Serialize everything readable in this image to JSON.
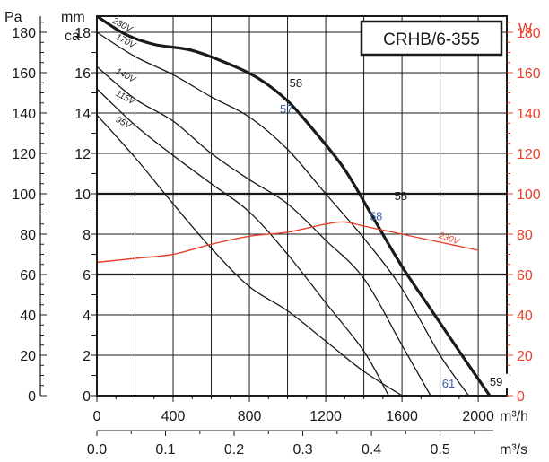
{
  "chart_data": {
    "type": "line",
    "title": "CRHB/6-355",
    "left_axis": {
      "unit_pa": "Pa",
      "unit_mm_1": "mm",
      "unit_mm_2": "ca",
      "pa_ticks": [
        "0",
        "20",
        "40",
        "60",
        "80",
        "100",
        "120",
        "140",
        "160",
        "180"
      ],
      "mm_ticks": [
        "0",
        "2",
        "4",
        "6",
        "8",
        "10",
        "12",
        "14",
        "16",
        "18"
      ],
      "ylim_pa": [
        0,
        188
      ]
    },
    "right_axis": {
      "unit": "W",
      "ticks": [
        "0",
        "20",
        "40",
        "60",
        "80",
        "100",
        "120",
        "140",
        "160",
        "180"
      ],
      "ylim": [
        0,
        188
      ],
      "color": "#e8402a"
    },
    "x_axis": {
      "unit_primary": "m³/h",
      "unit_secondary": "m³/s",
      "ticks_m3h": [
        "0",
        "400",
        "800",
        "1200",
        "1600",
        "2000"
      ],
      "ticks_m3s": [
        "0.0",
        "0.1",
        "0.2",
        "0.3",
        "0.4",
        "0.5"
      ],
      "xlim_m3h": [
        0,
        2150
      ]
    },
    "grid": true,
    "series": [
      {
        "name": "230V",
        "axis": "Pa",
        "bold": true,
        "x": [
          0,
          150,
          300,
          500,
          700,
          850,
          1000,
          1150,
          1300,
          1450,
          1600,
          1750,
          1900,
          2060
        ],
        "y": [
          188,
          179,
          174,
          171,
          164,
          157,
          146,
          130,
          112,
          88,
          64,
          43,
          22,
          0
        ]
      },
      {
        "name": "170V",
        "axis": "Pa",
        "x": [
          0,
          200,
          400,
          600,
          800,
          1000,
          1200,
          1400,
          1600,
          1800,
          1950
        ],
        "y": [
          180,
          168,
          159,
          148,
          138,
          122,
          100,
          78,
          53,
          20,
          0
        ]
      },
      {
        "name": "140V",
        "axis": "Pa",
        "x": [
          0,
          200,
          400,
          600,
          800,
          1000,
          1200,
          1400,
          1600,
          1750
        ],
        "y": [
          163,
          147,
          136,
          120,
          107,
          95,
          77,
          58,
          25,
          0
        ]
      },
      {
        "name": "115V",
        "axis": "Pa",
        "x": [
          0,
          200,
          400,
          600,
          800,
          1000,
          1200,
          1400,
          1530
        ],
        "y": [
          152,
          134,
          119,
          105,
          91,
          70,
          46,
          22,
          0
        ]
      },
      {
        "name": "95V",
        "axis": "Pa",
        "x": [
          0,
          200,
          400,
          600,
          800,
          1000,
          1200,
          1400,
          1600
        ],
        "y": [
          139,
          118,
          95,
          73,
          54,
          42,
          27,
          12,
          0
        ]
      },
      {
        "name": "230V",
        "axis": "W",
        "color": "#e8402a",
        "x": [
          0,
          200,
          400,
          600,
          800,
          1000,
          1200,
          1300,
          1400,
          1600,
          1800,
          2000
        ],
        "y": [
          66,
          68,
          70,
          75,
          79,
          81,
          85,
          86,
          84,
          80,
          76,
          72
        ]
      }
    ],
    "annotations": [
      {
        "text": "58",
        "x": 1010,
        "y": 153,
        "color": "black"
      },
      {
        "text": "57",
        "x": 960,
        "y": 140,
        "color": "blue"
      },
      {
        "text": "58",
        "x": 1560,
        "y": 97,
        "color": "black"
      },
      {
        "text": "58",
        "x": 1430,
        "y": 87,
        "color": "blue"
      },
      {
        "text": "61",
        "x": 1810,
        "y": 4,
        "color": "blue"
      },
      {
        "text": "59",
        "x": 2060,
        "y": 5,
        "color": "black"
      }
    ]
  }
}
